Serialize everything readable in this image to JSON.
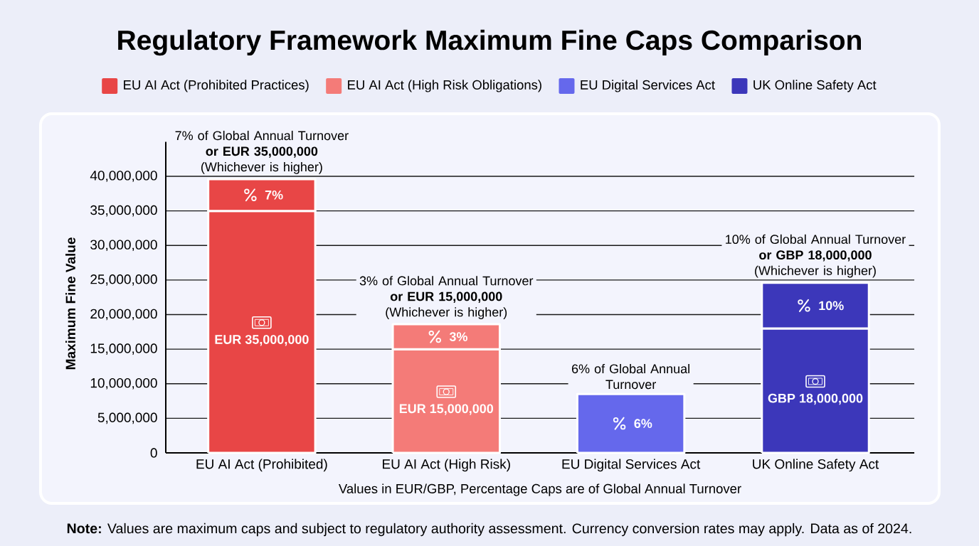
{
  "chart_data": {
    "type": "bar",
    "title": "Regulatory Framework Maximum Fine Caps Comparison",
    "xlabel": "Values in EUR/GBP, Percentage Caps are of Global Annual Turnover",
    "ylabel": "Maximum Fine Value",
    "categories": [
      "EU AI Act (Prohibited)",
      "EU AI Act (High Risk)",
      "EU Digital Services Act",
      "UK Online Safety Act"
    ],
    "stacked": true,
    "series": [
      {
        "name": "EU AI Act (Prohibited Practices)",
        "color": "#e84646",
        "values": [
          35000000,
          null,
          null,
          null
        ],
        "value_labels": [
          "EUR 35,000,000",
          null,
          null,
          null
        ]
      },
      {
        "name": "EU AI Act (High Risk Obligations)",
        "color": "#f47b78",
        "values": [
          null,
          15000000,
          null,
          null
        ],
        "value_labels": [
          null,
          "EUR 15,000,000",
          null,
          null
        ]
      },
      {
        "name": "EU Digital Services Act",
        "color": "#6568ec",
        "values": [
          null,
          null,
          8500000,
          null
        ]
      },
      {
        "name": "UK Online Safety Act",
        "color": "#3c37ba",
        "values": [
          null,
          null,
          null,
          18000000
        ],
        "value_labels": [
          null,
          null,
          null,
          "GBP 18,000,000"
        ]
      },
      {
        "color": "#e84646",
        "values": [
          4600000,
          null,
          null,
          null
        ]
      },
      {
        "color": "#f47b78",
        "values": [
          null,
          3600000,
          null,
          null
        ]
      },
      {
        "color": "#3c37ba",
        "values": [
          null,
          null,
          null,
          6600000
        ]
      }
    ],
    "ylim": [
      0,
      45000000
    ],
    "yticks": [
      0,
      {
        "value": 5000000,
        "label": "5,000,000"
      },
      {
        "value": 10000000,
        "label": "10,000,000"
      },
      {
        "value": 15000000,
        "label": "15,000,000"
      },
      {
        "value": 20000000,
        "label": "20,000,000"
      },
      {
        "value": 25000000,
        "label": "25,000,000"
      },
      {
        "value": 30000000,
        "label": "30,000,000"
      },
      {
        "value": 35000000,
        "label": "35,000,000"
      },
      {
        "value": 40000000,
        "label": "40,000,000"
      }
    ],
    "grid": "y",
    "legend": "top",
    "annotations": [
      {
        "text": "7% of Global Annual Turnover\n**or EUR 35,000,000**\n(Whichever is higher)",
        "x": "EU AI Act (Prohibited)",
        "y": 39600000
      },
      {
        "text": "3% of Global Annual Turnover\n**or EUR 15,000,000**\n(Whichever is higher)",
        "x": "EU AI Act (High Risk)",
        "y": 18600000
      },
      {
        "text": "6% of Global Annual\nTurnover",
        "x": "EU Digital Services Act",
        "y": 8500000
      },
      {
        "text": "10% of Global Annual Turnover\n**or GBP 18,000,000**\n(Whichever is higher)",
        "x": "UK Online Safety Act",
        "y": 24600000
      },
      "7%",
      "3%",
      "6%",
      "10%",
      "**Note:** Values are maximum caps and subject to regulatory authority assessment. Currency conversion rates may apply. Data as of 2024."
    ]
  }
}
